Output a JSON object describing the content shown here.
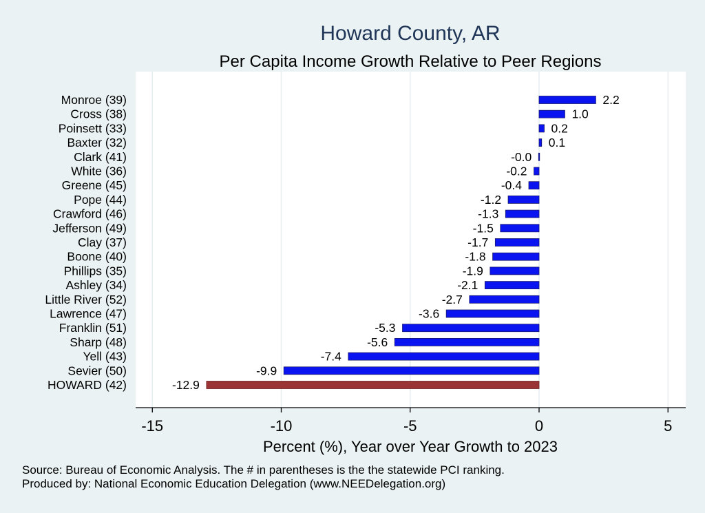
{
  "chart_data": {
    "type": "bar",
    "orientation": "horizontal",
    "title": "Howard County, AR",
    "subtitle": "Per Capita Income Growth Relative to Peer Regions",
    "xlabel": "Percent (%), Year over Year Growth to 2023",
    "xlim": [
      -15,
      5
    ],
    "xticks": [
      -15,
      -10,
      -5,
      0,
      5
    ],
    "xtick_labels": [
      "-15",
      "-10",
      "-5",
      "0",
      "5"
    ],
    "grid": true,
    "categories": [
      "Monroe (39)",
      "Cross (38)",
      "Poinsett (33)",
      "Baxter (32)",
      "Clark (41)",
      "White (36)",
      "Greene (45)",
      "Pope (44)",
      "Crawford (46)",
      "Jefferson (49)",
      "Clay (37)",
      "Boone (40)",
      "Phillips (35)",
      "Ashley (34)",
      "Little River (52)",
      "Lawrence (47)",
      "Franklin (51)",
      "Sharp (48)",
      "Yell (43)",
      "Sevier (50)",
      "HOWARD (42)"
    ],
    "values": [
      2.2,
      1.0,
      0.2,
      0.1,
      -0.02,
      -0.2,
      -0.4,
      -1.2,
      -1.3,
      -1.5,
      -1.7,
      -1.8,
      -1.9,
      -2.1,
      -2.7,
      -3.6,
      -5.3,
      -5.6,
      -7.4,
      -9.9,
      -12.9
    ],
    "value_labels": [
      "2.2",
      "1.0",
      "0.2",
      "0.1",
      "-0.0",
      "-0.2",
      "-0.4",
      "-1.2",
      "-1.3",
      "-1.5",
      "-1.7",
      "-1.8",
      "-1.9",
      "-2.1",
      "-2.7",
      "-3.6",
      "-5.3",
      "-5.6",
      "-7.4",
      "-9.9",
      "-12.9"
    ],
    "highlight_index": 20,
    "colors": {
      "bar": "#0a14f0",
      "bar_edge": "#1a1a6e",
      "highlight": "#9b3535",
      "background": "#eaf2f3",
      "plot_bg": "#ffffff",
      "grid": "#e6eef0",
      "title": "#1f3557"
    },
    "notes": [
      "Source: Bureau of Economic Analysis. The # in parentheses is the the statewide PCI ranking.",
      "Produced by: National Economic Education Delegation (www.NEEDelegation.org)"
    ]
  }
}
